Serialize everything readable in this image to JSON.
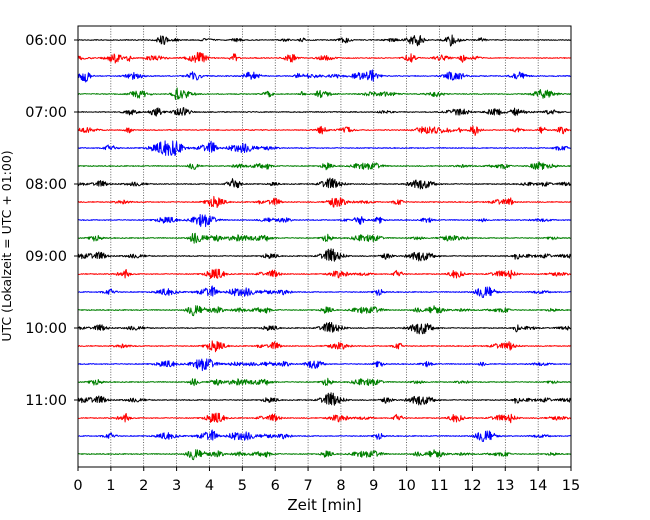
{
  "chart_data": {
    "type": "line",
    "subtype": "helicorder",
    "xlabel": "Zeit  [min]",
    "ylabel": "UTC (Lokalzeit = UTC + 01:00)",
    "xlim": [
      0,
      15
    ],
    "x_ticks": [
      "0",
      "1",
      "2",
      "3",
      "4",
      "5",
      "6",
      "7",
      "8",
      "9",
      "10",
      "11",
      "12",
      "13",
      "14",
      "15"
    ],
    "y_ticks": [
      "06:00",
      "07:00",
      "08:00",
      "09:00",
      "10:00",
      "11:00"
    ],
    "grid": "vertical dotted",
    "trace_colors": [
      "#000000",
      "#ff0000",
      "#0000ff",
      "#008000"
    ],
    "trace_start_times": [
      "06:00",
      "06:15",
      "06:30",
      "06:45",
      "07:00",
      "07:15",
      "07:30",
      "07:45",
      "08:00",
      "08:15",
      "08:30",
      "08:45",
      "09:00",
      "09:15",
      "09:30",
      "09:45",
      "10:00",
      "10:15",
      "10:30",
      "10:45",
      "11:00",
      "11:15",
      "11:30",
      "11:45"
    ],
    "minutes_per_trace": 15
  }
}
